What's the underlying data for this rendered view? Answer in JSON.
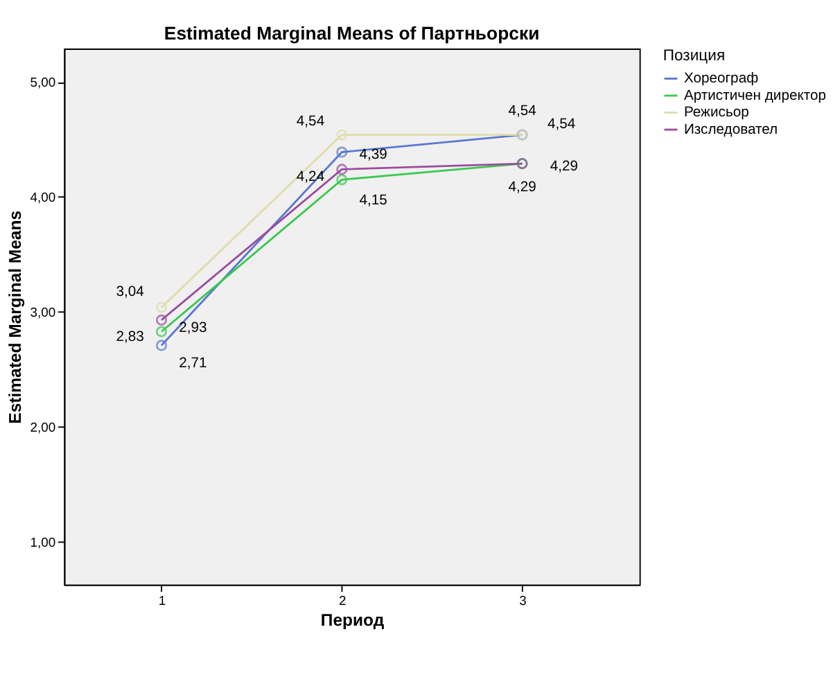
{
  "chart_data": {
    "type": "line",
    "title": "Estimated Marginal Means of Партньорски",
    "xlabel": "Период",
    "ylabel": "Estimated Marginal Means",
    "legend_title": "Позиция",
    "legend": "top right",
    "marker": "circle",
    "line_style": "solid",
    "grid": false,
    "x": [
      1,
      2,
      3
    ],
    "xlim": [
      0.46,
      3.65
    ],
    "xticks": [
      1,
      2,
      3
    ],
    "ylim": [
      0.63,
      5.29
    ],
    "yticks": [
      {
        "value": 1,
        "label": "1,00"
      },
      {
        "value": 2,
        "label": "2,00"
      },
      {
        "value": 3,
        "label": "3,00"
      },
      {
        "value": 4,
        "label": "4,00"
      },
      {
        "value": 5,
        "label": "5,00"
      }
    ],
    "series": [
      {
        "name": "Хореограф",
        "color": "#5a78d0",
        "values": [
          2.71,
          4.39,
          4.54
        ],
        "value_labels": [
          "2,71",
          "4,39",
          "4,54"
        ]
      },
      {
        "name": "Артистичен директор",
        "color": "#3cc850",
        "values": [
          2.83,
          4.15,
          4.29
        ],
        "value_labels": [
          "2,83",
          "4,15",
          "4,29"
        ]
      },
      {
        "name": "Режисьор",
        "color": "#e0dcaa",
        "values": [
          3.04,
          4.54,
          4.54
        ],
        "value_labels": [
          "3,04",
          "4,54",
          "4,54"
        ]
      },
      {
        "name": "Изследовател",
        "color": "#9a4ca0",
        "values": [
          2.93,
          4.24,
          4.29
        ],
        "value_labels": [
          "2,93",
          "4,24",
          "4,29"
        ]
      }
    ]
  }
}
